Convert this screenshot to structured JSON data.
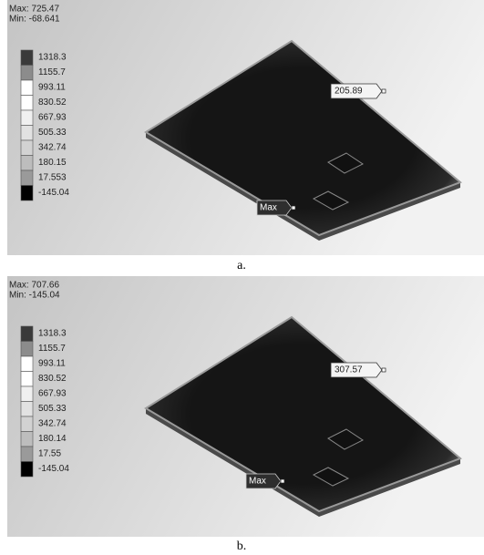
{
  "panels": [
    {
      "max": "Max: 725.47",
      "min": "Min: -68.641",
      "legend": [
        "1318.3",
        "1155.7",
        "993.11",
        "830.52",
        "667.93",
        "505.33",
        "342.74",
        "180.15",
        "17.553",
        "-145.04"
      ],
      "callout": "205.89",
      "max_callout": "Max",
      "caption": "a."
    },
    {
      "max": "Max: 707.66",
      "min": "Min: -145.04",
      "legend": [
        "1318.3",
        "1155.7",
        "993.11",
        "830.52",
        "667.93",
        "505.33",
        "342.74",
        "180.14",
        "17.55",
        "-145.04"
      ],
      "callout": "307.57",
      "max_callout": "Max",
      "caption": "b."
    }
  ]
}
